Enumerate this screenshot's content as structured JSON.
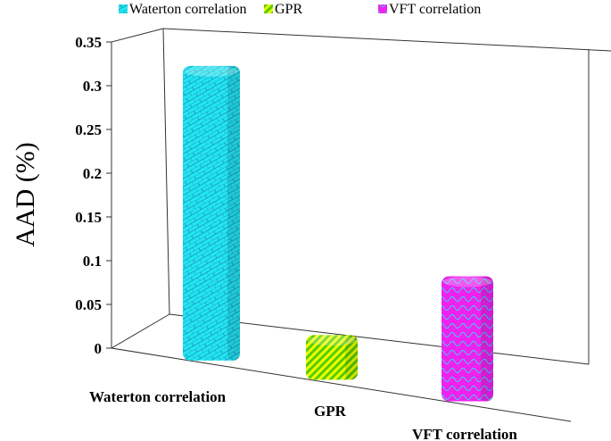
{
  "chart_data": {
    "type": "bar",
    "title": "",
    "xlabel": "",
    "ylabel": "AAD (%)",
    "ylim": [
      0,
      0.35
    ],
    "yticks": [
      "0",
      "0.05",
      "0.1",
      "0.15",
      "0.2",
      "0.25",
      "0.3",
      "0.35"
    ],
    "categories": [
      "Waterton correlation",
      "GPR",
      "VFT correlation"
    ],
    "values": [
      0.33,
      0.05,
      0.14
    ],
    "legend": [
      "Waterton correlation",
      "GPR",
      "VFT correlation"
    ],
    "legend_position": "top",
    "colors": [
      "#22e6ee",
      "#77dd00",
      "#ee22ee"
    ],
    "style": "3d-column"
  }
}
